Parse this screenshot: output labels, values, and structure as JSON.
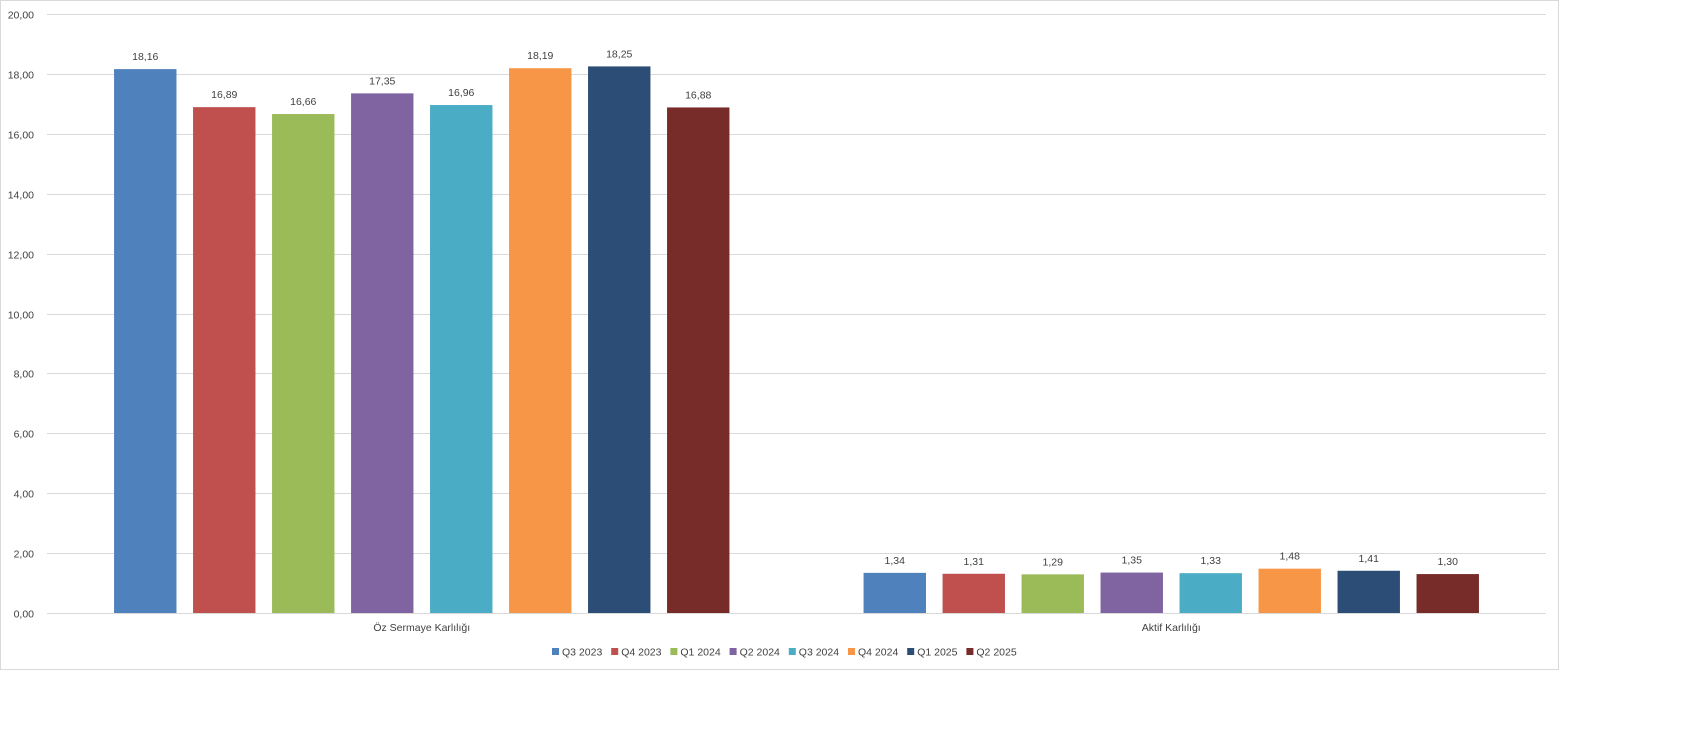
{
  "chart_data": {
    "type": "bar",
    "categories": [
      "Öz Sermaye Karlılığı",
      "Aktif Karlılığı"
    ],
    "series": [
      {
        "name": "Q3 2023",
        "color": "#4f81bd",
        "values": [
          18.16,
          1.34
        ],
        "labels": [
          "18,16",
          "1,34"
        ]
      },
      {
        "name": "Q4 2023",
        "color": "#c0504d",
        "values": [
          16.89,
          1.31
        ],
        "labels": [
          "16,89",
          "1,31"
        ]
      },
      {
        "name": "Q1 2024",
        "color": "#9bbb59",
        "values": [
          16.66,
          1.29
        ],
        "labels": [
          "16,66",
          "1,29"
        ]
      },
      {
        "name": "Q2 2024",
        "color": "#8064a2",
        "values": [
          17.35,
          1.35
        ],
        "labels": [
          "17,35",
          "1,35"
        ]
      },
      {
        "name": "Q3 2024",
        "color": "#4bacc6",
        "values": [
          16.96,
          1.33
        ],
        "labels": [
          "16,96",
          "1,33"
        ]
      },
      {
        "name": "Q4 2024",
        "color": "#f79646",
        "values": [
          18.19,
          1.48
        ],
        "labels": [
          "18,19",
          "1,48"
        ]
      },
      {
        "name": "Q1 2025",
        "color": "#2c4d75",
        "values": [
          18.25,
          1.41
        ],
        "labels": [
          "18,25",
          "1,41"
        ]
      },
      {
        "name": "Q2 2025",
        "color": "#772c2a",
        "values": [
          16.88,
          1.3
        ],
        "labels": [
          "16,88",
          "1,30"
        ]
      }
    ],
    "yticks": [
      0,
      2,
      4,
      6,
      8,
      10,
      12,
      14,
      16,
      18,
      20
    ],
    "ytick_labels": [
      "0,00",
      "2,00",
      "4,00",
      "6,00",
      "8,00",
      "10,00",
      "12,00",
      "14,00",
      "16,00",
      "18,00",
      "20,00"
    ],
    "ylim": [
      0,
      20
    ],
    "title": "",
    "xlabel": "",
    "ylabel": "",
    "grid": true,
    "legend_position": "bottom",
    "gridline_color": "#d9d9d9",
    "text_color": "#404040"
  }
}
